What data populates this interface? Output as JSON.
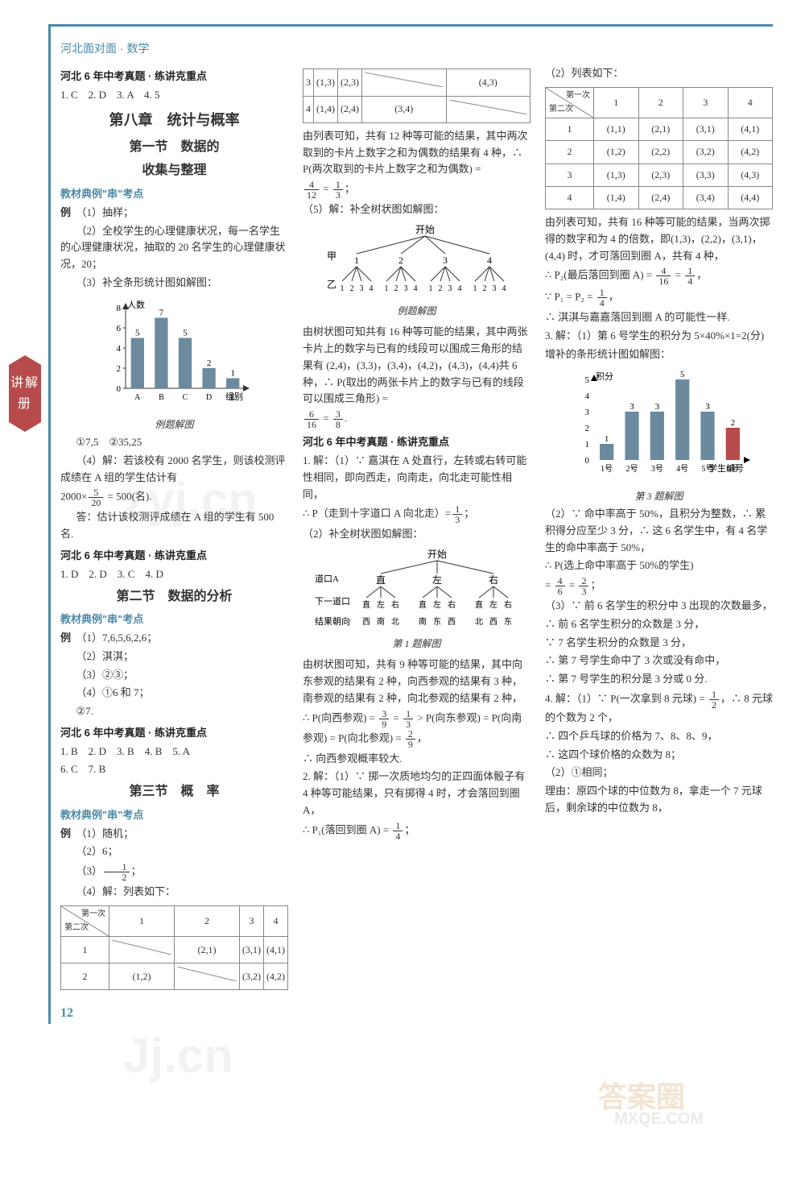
{
  "book_title": "河北面对面 · 数学",
  "side_tab": "讲解册",
  "page_num": "12",
  "watermarks": {
    "w1": "zyj.cn",
    "w2": "Jj.cn",
    "w3": "答案圈",
    "w4": "MXQE.COM"
  },
  "col1": {
    "hdr_zhenti1": "河北 6 年中考真题 · 练讲克重点",
    "ans1": "1. C　2. D　3. A　4. 5",
    "ch8_title": "第八章　统计与概率",
    "s1_title1": "第一节　数据的",
    "s1_title2": "收集与整理",
    "hdr_kdian": "教材典例\"串\"考点",
    "ex_label": "例",
    "ex1_1": "（1）抽样；",
    "ex1_2": "（2）全校学生的心理健康状况，每一名学生的心理健康状况，抽取的 20 名学生的心理健康状况，20；",
    "ex1_3": "（3）补全条形统计图如解图：",
    "chart1": {
      "ylabel": "人数",
      "ymax": 8,
      "ytick": 2,
      "cats": [
        "A",
        "B",
        "C",
        "D",
        "E"
      ],
      "vals": [
        5,
        7,
        5,
        2,
        1
      ],
      "xlabel": "组别",
      "caption": "例题解图",
      "bar_color": "#6b8a9e",
      "axis_color": "#333"
    },
    "ex1_4a": "①7,5　②35,25",
    "ex1_4b": "（4）解：若该校有 2000 名学生，则该校测评成绩在 A 组的学生估计有",
    "ex1_4c_pre": "2000×",
    "ex1_4c_n": "5",
    "ex1_4c_d": "20",
    "ex1_4c_post": " = 500(名).",
    "ex1_4d": "答：估计该校测评成绩在 A 组的学生有 500 名.",
    "hdr_zhenti2": "河北 6 年中考真题 · 练讲克重点",
    "ans2": "1. D　2. D　3. C　4. D",
    "s2_title": "第二节　数据的分析",
    "ex2_1": "（1）7,6,5,6,2,6；",
    "ex2_2": "（2）淇淇；",
    "ex2_3": "（3）②③；",
    "ex2_4": "（4）①6 和 7；",
    "ex2_5": "②7.",
    "hdr_zhenti3": "河北 6 年中考真题 · 练讲克重点",
    "ans3_1": "1. B　2. D　3. B　4. B　5. A",
    "ans3_2": "6. C　7. B",
    "s3_title": "第三节　概　率",
    "ex3_1": "（1）随机；",
    "ex3_2": "（2）6；",
    "ex3_3_pre": "（3）",
    "ex3_3_n": "1",
    "ex3_3_d": "2",
    "ex3_3_post": "；",
    "ex3_4": "（4）解：列表如下：",
    "table1": {
      "diag_tl": "第一次",
      "diag_br": "第二次",
      "cols": [
        "1",
        "2",
        "3",
        "4"
      ],
      "rows": [
        {
          "h": "1",
          "c": [
            "",
            "(2,1)",
            "(3,1)",
            "(4,1)"
          ]
        },
        {
          "h": "2",
          "c": [
            "(1,2)",
            "",
            "(3,2)",
            "(4,2)"
          ]
        }
      ]
    }
  },
  "col2": {
    "table_top": {
      "rows": [
        {
          "h": "3",
          "c": [
            "(1,3)",
            "(2,3)",
            "",
            "(4,3)"
          ]
        },
        {
          "h": "4",
          "c": [
            "(1,4)",
            "(2,4)",
            "(3,4)",
            ""
          ]
        }
      ]
    },
    "p1": "由列表可知，共有 12 种等可能的结果，其中两次取到的卡片上数字之和为偶数的结果有 4 种，∴ P(两次取到的卡片上数字之和为偶数) =",
    "p1_f1n": "4",
    "p1_f1d": "12",
    "p1_eq": " = ",
    "p1_f2n": "1",
    "p1_f2d": "3",
    "p1_end": "；",
    "p2": "（5）解：补全树状图如解图：",
    "tree1": {
      "root": "开始",
      "l1_label": "甲",
      "l1": [
        "1",
        "2",
        "3",
        "4"
      ],
      "l2_label": "乙",
      "l2": "1234 1234 1234 1234",
      "caption": "例题解图"
    },
    "p3a": "由树状图可知共有 16 种等可能的结果，其中两张卡片上的数字与已有的线段可以围成三角形的结果有 (2,4)，(3,3)，(3,4)，(4,2)，(4,3)，(4,4)共 6 种，∴ P(取出的两张卡片上的数字与已有的线段可以围成三角形) =",
    "p3_f1n": "6",
    "p3_f1d": "16",
    "p3_eq": " = ",
    "p3_f2n": "3",
    "p3_f2d": "8",
    "p3_end": ".",
    "hdr_zhenti": "河北 6 年中考真题 · 练讲克重点",
    "q1_1": "1. 解：（1）∵ 嘉淇在 A 处直行，左转或右转可能性相同，即向西走，向南走，向北走可能性相同，",
    "q1_2_pre": "∴ P（走到十字道口 A 向北走）=",
    "q1_2_n": "1",
    "q1_2_d": "3",
    "q1_2_end": "；",
    "q1_3": "（2）补全树状图如解图：",
    "tree2": {
      "root": "开始",
      "row1_l": "道口A",
      "row1": [
        "直",
        "左",
        "右"
      ],
      "row2_l": "下一道口",
      "row2": "直左右 直左右 直左右",
      "row3_l": "结果朝向",
      "row3": "西南北 南东西 北西东",
      "caption": "第 1 题解图"
    },
    "q1_4": "由树状图可知，共有 9 种等可能的结果，其中向东参观的结果有 2 种，向西参观的结果有 3 种，南参观的结果有 2 种，向北参观的结果有 2 种，",
    "q1_5_pre": "∴ P(向西参观) = ",
    "q1_5_f1n": "3",
    "q1_5_f1d": "9",
    "q1_5_eq": " = ",
    "q1_5_f2n": "1",
    "q1_5_f2d": "3",
    "q1_5_mid": " > P(向东参观) = P(向南参观) = P(向北参观) = ",
    "q1_5_f3n": "2",
    "q1_5_f3d": "9",
    "q1_5_end": "，",
    "q1_6": "∴ 向西参观概率较大.",
    "q2_1": "2. 解：（1）∵ 掷一次质地均匀的正四面体骰子有 4 种等可能结果，只有掷得 4 时，才会落回到圈 A，",
    "q2_2_pre": "∴ P₁(落回到圈 A) = ",
    "q2_2_n": "1",
    "q2_2_d": "4",
    "q2_2_end": "；"
  },
  "col3": {
    "p1": "（2）列表如下：",
    "table2": {
      "diag_tl": "第一次",
      "diag_br": "第二次",
      "cols": [
        "1",
        "2",
        "3",
        "4"
      ],
      "rows": [
        {
          "h": "1",
          "c": [
            "(1,1)",
            "(2,1)",
            "(3,1)",
            "(4,1)"
          ]
        },
        {
          "h": "2",
          "c": [
            "(1,2)",
            "(2,2)",
            "(3,2)",
            "(4,2)"
          ]
        },
        {
          "h": "3",
          "c": [
            "(1,3)",
            "(2,3)",
            "(3,3)",
            "(4,3)"
          ]
        },
        {
          "h": "4",
          "c": [
            "(1,4)",
            "(2,4)",
            "(3,4)",
            "(4,4)"
          ]
        }
      ]
    },
    "p2": "由列表可知，共有 16 种等可能的结果，当两次掷得的数字和为 4 的倍数，即(1,3)，(2,2)，(3,1)，(4,4) 时，才可落回到圈 A，共有 4 种，",
    "p3_pre": "∴ P₂(最后落回到圈 A) = ",
    "p3_f1n": "4",
    "p3_f1d": "16",
    "p3_eq": " = ",
    "p3_f2n": "1",
    "p3_f2d": "4",
    "p3_end": "，",
    "p4_pre": "∵ P₁ = P₂ = ",
    "p4_n": "1",
    "p4_d": "4",
    "p4_end": "，",
    "p5": "∴ 淇淇与嘉嘉落回到圈 A 的可能性一样.",
    "q3_1": "3. 解：（1）第 6 号学生的积分为 5×40%×1=2(分)",
    "q3_2": "增补的条形统计图如解图：",
    "chart2": {
      "ylabel": "积分",
      "ymax": 5,
      "ytick": 1,
      "cats": [
        "1号",
        "2号",
        "3号",
        "4号",
        "5号",
        "6号"
      ],
      "vals": [
        1,
        3,
        3,
        5,
        3,
        2
      ],
      "xlabel": "学生编号",
      "caption": "第 3 题解图",
      "bar_color": "#6b8a9e",
      "hl_color": "#b74a4a",
      "hl_index": 5
    },
    "q3_3": "（2）∵ 命中率高于 50%，且积分为整数，∴ 累积得分应至少 3 分，∴ 这 6 名学生中，有 4 名学生的命中率高于 50%，",
    "q3_4_pre": "∴ P(选上命中率高于 50%的学生)",
    "q3_4_eq": " = ",
    "q3_4_f1n": "4",
    "q3_4_f1d": "6",
    "q3_4_eq2": " = ",
    "q3_4_f2n": "2",
    "q3_4_f2d": "3",
    "q3_4_end": "；",
    "q3_5": "（3）∵ 前 6 名学生的积分中 3 出现的次数最多，",
    "q3_6": "∴ 前 6 名学生积分的众数是 3 分，",
    "q3_7": "∵ 7 名学生积分的众数是 3 分，",
    "q3_8": "∴ 第 7 号学生命中了 3 次或没有命中，",
    "q3_9": "∴ 第 7 号学生的积分是 3 分或 0 分.",
    "q4_1_pre": "4. 解：（1）∵ P(一次拿到 8 元球) = ",
    "q4_1_n": "1",
    "q4_1_d": "2",
    "q4_1_end": "，∴ 8 元球的个数为 2 个，",
    "q4_2": "∴ 四个乒乓球的价格为 7、8、8、9，",
    "q4_3": "∴ 这四个球价格的众数为 8；",
    "q4_4": "（2）①相同；",
    "q4_5": "理由：原四个球的中位数为 8，拿走一个 7 元球后，剩余球的中位数为 8，"
  }
}
